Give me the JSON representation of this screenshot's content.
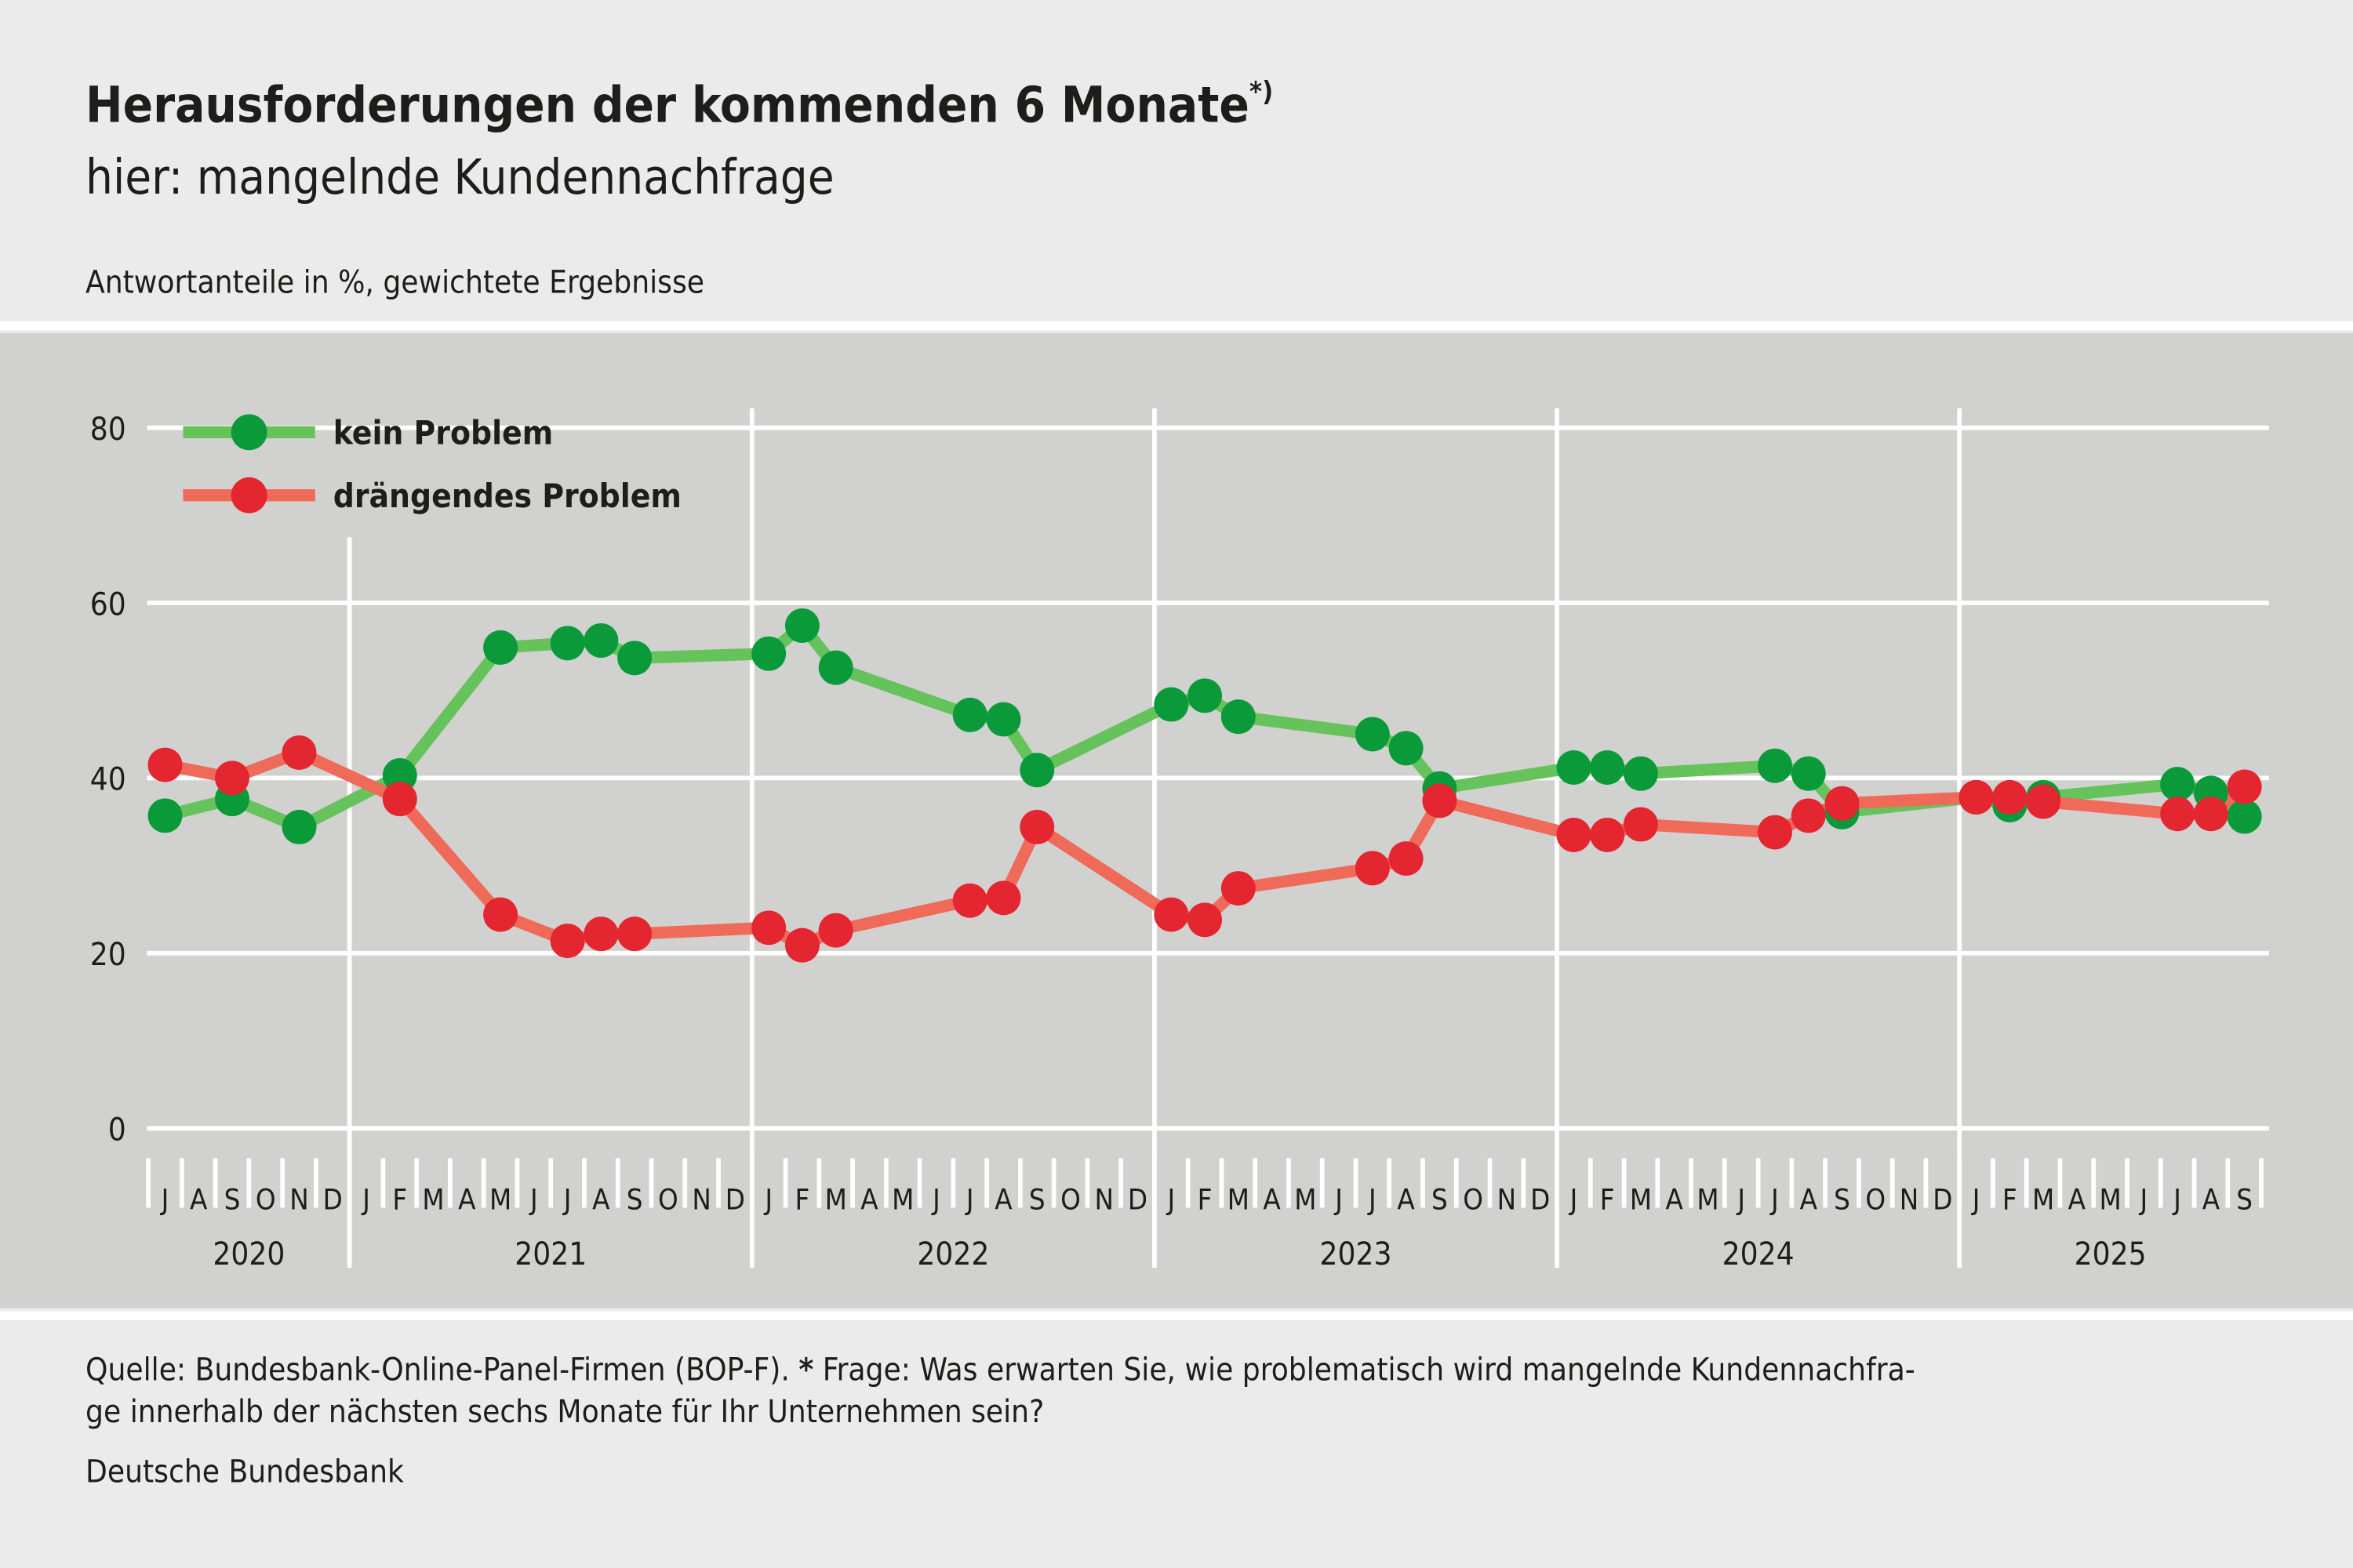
{
  "header": {
    "title": "Herausforderungen der kommenden 6 Monate",
    "title_footnote_mark": "*)",
    "subtitle": "hier: mangelnde Kundennachfrage",
    "unit_note": "Antwortanteile in %, gewichtete Ergebnisse"
  },
  "footer": {
    "source_line1_a": "Quelle: Bundesbank-Online-Panel-Firmen (BOP-F). ",
    "source_line1_star": "*",
    "source_line1_b": " Frage: Was erwarten Sie, wie problematisch wird mangelnde Kundennachfra-",
    "source_line2": "ge innerhalb der nächsten sechs Monate für Ihr Unternehmen sein?",
    "publisher": "Deutsche Bundesbank"
  },
  "chart_data": {
    "type": "line",
    "title": "Herausforderungen der kommenden 6 Monate",
    "xlabel": "",
    "ylabel": "",
    "ylim": [
      0,
      80
    ],
    "yticks": [
      "0",
      "20",
      "40",
      "60",
      "80"
    ],
    "grid": true,
    "legend_position": "top-left",
    "x_range": [
      "2020-07",
      "2025-09"
    ],
    "month_labels": [
      "J",
      "A",
      "S",
      "O",
      "N",
      "D",
      "J",
      "F",
      "M",
      "A",
      "M",
      "J",
      "J",
      "A",
      "S",
      "O",
      "N",
      "D",
      "J",
      "F",
      "M",
      "A",
      "M",
      "J",
      "J",
      "A",
      "S",
      "O",
      "N",
      "D",
      "J",
      "F",
      "M",
      "A",
      "M",
      "J",
      "J",
      "A",
      "S",
      "O",
      "N",
      "D",
      "J",
      "F",
      "M",
      "A",
      "M",
      "J",
      "J",
      "A",
      "S",
      "O",
      "N",
      "D",
      "J",
      "F",
      "M",
      "A",
      "M",
      "J",
      "J",
      "A",
      "S"
    ],
    "year_labels": [
      "2020",
      "2021",
      "2022",
      "2023",
      "2024",
      "2025"
    ],
    "x": [
      "2020-07",
      "2020-09",
      "2020-11",
      "2021-02",
      "2021-05",
      "2021-07",
      "2021-08",
      "2021-09",
      "2022-01",
      "2022-02",
      "2022-03",
      "2022-07",
      "2022-08",
      "2022-09",
      "2023-01",
      "2023-02",
      "2023-03",
      "2023-07",
      "2023-08",
      "2023-09",
      "2024-01",
      "2024-02",
      "2024-03",
      "2024-07",
      "2024-08",
      "2024-09",
      "2025-01",
      "2025-02",
      "2025-03",
      "2025-07",
      "2025-08",
      "2025-09"
    ],
    "series": [
      {
        "name": "kein Problem",
        "line_color": "#66c35c",
        "marker_color": "#0a9a3a",
        "values": [
          35.7,
          37.6,
          34.4,
          40.3,
          54.9,
          55.4,
          55.7,
          53.7,
          54.2,
          57.4,
          52.6,
          47.2,
          46.7,
          40.9,
          48.4,
          49.4,
          47.0,
          45.0,
          43.4,
          38.8,
          41.2,
          41.2,
          40.5,
          41.4,
          40.5,
          36.1,
          37.8,
          36.9,
          37.8,
          39.3,
          38.3,
          35.6
        ]
      },
      {
        "name": "drängendes Problem",
        "line_color": "#f06a5a",
        "marker_color": "#e3262f",
        "values": [
          41.5,
          40.0,
          42.9,
          37.6,
          24.4,
          21.4,
          22.2,
          22.2,
          22.9,
          20.9,
          22.6,
          26.0,
          26.3,
          34.4,
          24.4,
          23.8,
          27.4,
          29.7,
          30.8,
          37.4,
          33.5,
          33.5,
          34.7,
          33.8,
          35.7,
          37.1,
          37.8,
          37.8,
          37.3,
          35.9,
          35.9,
          39.0
        ]
      }
    ]
  }
}
